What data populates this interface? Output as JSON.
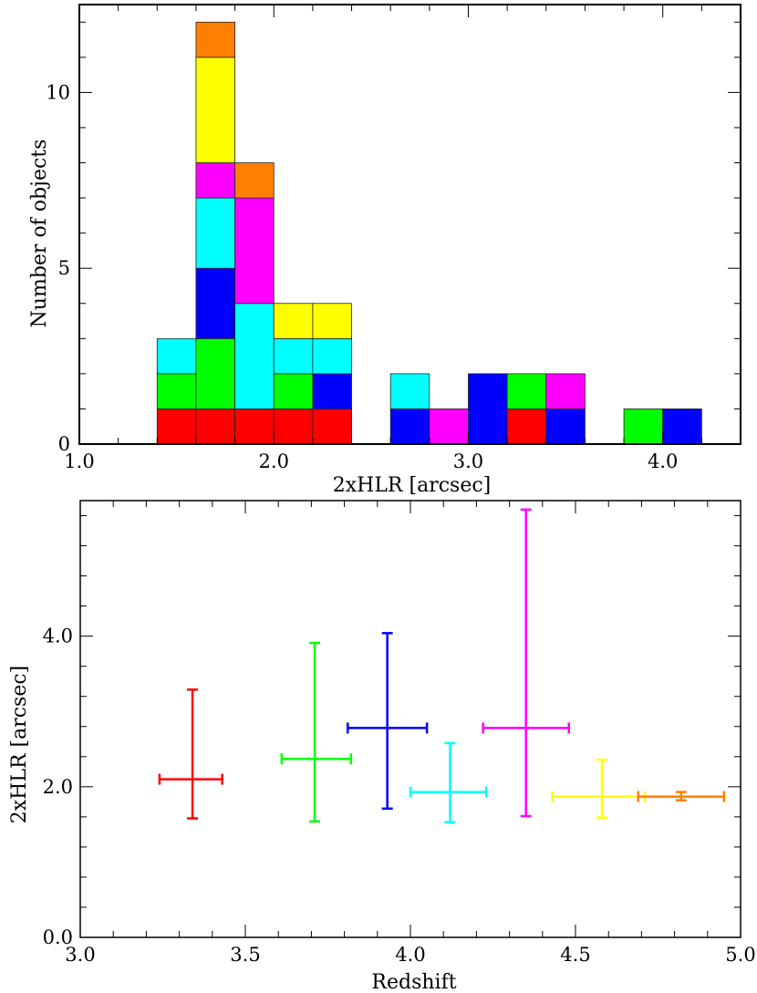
{
  "chart_data": [
    {
      "type": "bar",
      "subtype": "stacked-histogram",
      "xlabel": "2xHLR [arcsec]",
      "ylabel": "Number of objects",
      "xlim": [
        1.0,
        4.4
      ],
      "ylim": [
        0,
        12.5
      ],
      "xticks": [
        1.0,
        2.0,
        3.0,
        4.0
      ],
      "xtick_labels": [
        "1.0",
        "2.0",
        "3.0",
        "4.0"
      ],
      "yticks": [
        0,
        5,
        10
      ],
      "ytick_labels": [
        "0",
        "5",
        "10"
      ],
      "bin_width": 0.2,
      "colors": {
        "red": "#ff0000",
        "green": "#00ff00",
        "blue": "#0000ff",
        "cyan": "#00ffff",
        "magenta": "#ff00ff",
        "yellow": "#ffff00",
        "orange": "#ff8000"
      },
      "stack_order": [
        "red",
        "green",
        "blue",
        "cyan",
        "magenta",
        "yellow",
        "orange"
      ],
      "bins": [
        {
          "x0": 1.4,
          "counts": {
            "red": 1,
            "green": 1,
            "cyan": 1
          }
        },
        {
          "x0": 1.6,
          "counts": {
            "red": 1,
            "green": 2,
            "blue": 2,
            "cyan": 2,
            "magenta": 1,
            "yellow": 3,
            "orange": 1
          }
        },
        {
          "x0": 1.8,
          "counts": {
            "red": 1,
            "cyan": 3,
            "magenta": 3,
            "orange": 1
          }
        },
        {
          "x0": 2.0,
          "counts": {
            "red": 1,
            "green": 1,
            "cyan": 1,
            "yellow": 1
          }
        },
        {
          "x0": 2.2,
          "counts": {
            "red": 1,
            "blue": 1,
            "cyan": 1,
            "yellow": 1
          }
        },
        {
          "x0": 2.6,
          "counts": {
            "blue": 1,
            "cyan": 1
          }
        },
        {
          "x0": 2.8,
          "counts": {
            "magenta": 1
          }
        },
        {
          "x0": 3.0,
          "counts": {
            "blue": 2
          }
        },
        {
          "x0": 3.2,
          "counts": {
            "red": 1,
            "green": 1
          }
        },
        {
          "x0": 3.4,
          "counts": {
            "blue": 1,
            "magenta": 1
          }
        },
        {
          "x0": 3.8,
          "counts": {
            "green": 1
          }
        },
        {
          "x0": 4.0,
          "counts": {
            "blue": 1
          }
        }
      ]
    },
    {
      "type": "errorbar",
      "xlabel": "Redshift",
      "ylabel": "2xHLR [arcsec]",
      "xlim": [
        3.0,
        5.0
      ],
      "ylim": [
        0.0,
        5.8
      ],
      "xticks": [
        3.0,
        3.5,
        4.0,
        4.5,
        5.0
      ],
      "xtick_labels": [
        "3.0",
        "3.5",
        "4.0",
        "4.5",
        "5.0"
      ],
      "yticks": [
        0.0,
        2.0,
        4.0
      ],
      "ytick_labels": [
        "0.0",
        "2.0",
        "4.0"
      ],
      "points": [
        {
          "color": "red",
          "x": 3.34,
          "y": 2.1,
          "xerr": [
            3.24,
            3.43
          ],
          "yerr": [
            1.58,
            3.29
          ]
        },
        {
          "color": "green",
          "x": 3.71,
          "y": 2.37,
          "xerr": [
            3.61,
            3.82
          ],
          "yerr": [
            1.54,
            3.91
          ]
        },
        {
          "color": "blue",
          "x": 3.93,
          "y": 2.78,
          "xerr": [
            3.81,
            4.05
          ],
          "yerr": [
            1.71,
            4.04
          ]
        },
        {
          "color": "cyan",
          "x": 4.12,
          "y": 1.93,
          "xerr": [
            4.0,
            4.23
          ],
          "yerr": [
            1.53,
            2.58
          ]
        },
        {
          "color": "magenta",
          "x": 4.35,
          "y": 2.78,
          "xerr": [
            4.22,
            4.48
          ],
          "yerr": [
            1.61,
            5.68
          ]
        },
        {
          "color": "yellow",
          "x": 4.58,
          "y": 1.87,
          "xerr": [
            4.43,
            4.71
          ],
          "yerr": [
            1.59,
            2.36
          ]
        },
        {
          "color": "orange",
          "x": 4.82,
          "y": 1.87,
          "xerr": [
            4.69,
            4.95
          ],
          "yerr": [
            1.82,
            1.93
          ]
        }
      ]
    }
  ]
}
